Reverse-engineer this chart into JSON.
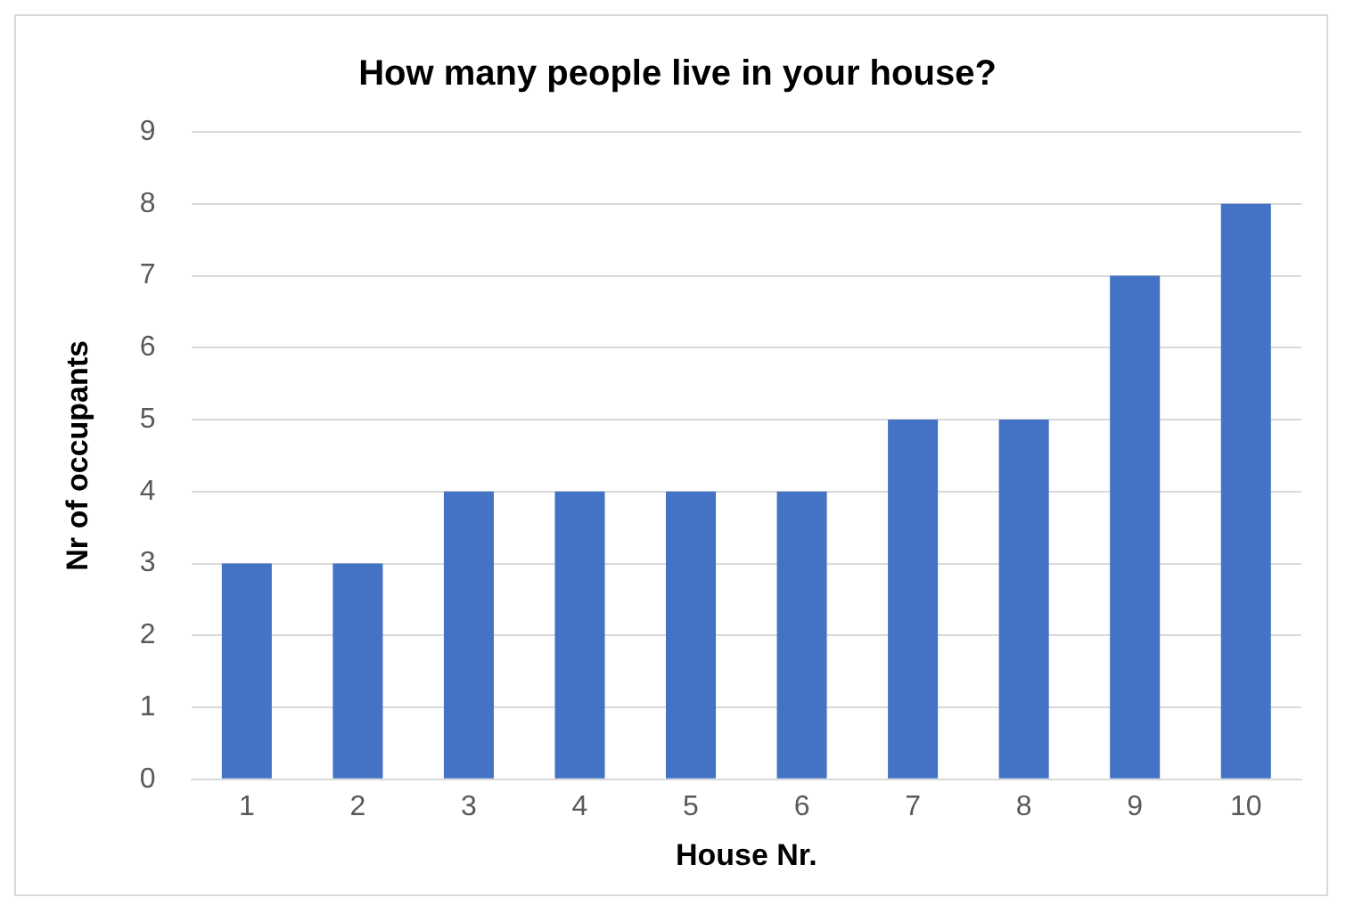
{
  "chart_data": {
    "type": "bar",
    "title": "How many people live in your house?",
    "xlabel": "House Nr.",
    "ylabel": "Nr of occupants",
    "categories": [
      "1",
      "2",
      "3",
      "4",
      "5",
      "6",
      "7",
      "8",
      "9",
      "10"
    ],
    "values": [
      3,
      3,
      4,
      4,
      4,
      4,
      5,
      5,
      7,
      8
    ],
    "color": "#4472c4",
    "ylim": [
      0,
      9
    ],
    "yticks": [
      0,
      1,
      2,
      3,
      4,
      5,
      6,
      7,
      8,
      9
    ],
    "grid": "y",
    "legend": false
  }
}
